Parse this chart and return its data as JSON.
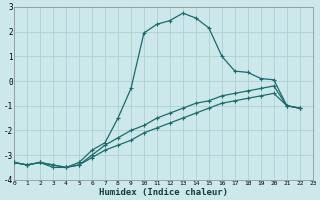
{
  "xlabel": "Humidex (Indice chaleur)",
  "background_color": "#cce8ea",
  "grid_color": "#b0d0d4",
  "line_color": "#1a6b6b",
  "xlim": [
    0,
    23
  ],
  "ylim": [
    -4,
    3
  ],
  "xtick_labels": [
    "0",
    "1",
    "2",
    "3",
    "4",
    "5",
    "6",
    "7",
    "8",
    "9",
    "10",
    "11",
    "12",
    "13",
    "14",
    "15",
    "16",
    "17",
    "18",
    "19",
    "20",
    "21",
    "22",
    "23"
  ],
  "ytick_labels": [
    "-4",
    "-3",
    "-2",
    "-1",
    "0",
    "1",
    "2",
    "3"
  ],
  "ytick_vals": [
    -4,
    -3,
    -2,
    -1,
    0,
    1,
    2,
    3
  ],
  "curve1_x": [
    0,
    1,
    2,
    3,
    4,
    5,
    6,
    7,
    8,
    9,
    10,
    11,
    12,
    13,
    14,
    15,
    16,
    17,
    18,
    19,
    20,
    21,
    22
  ],
  "curve1_y": [
    -3.3,
    -3.4,
    -3.3,
    -3.4,
    -3.5,
    -3.4,
    -3.1,
    -2.8,
    -2.6,
    -2.4,
    -2.1,
    -1.9,
    -1.7,
    -1.5,
    -1.3,
    -1.1,
    -0.9,
    -0.8,
    -0.7,
    -0.6,
    -0.5,
    -1.0,
    -1.1
  ],
  "curve2_x": [
    0,
    1,
    2,
    3,
    4,
    5,
    6,
    7,
    8,
    9,
    10,
    11,
    12,
    13,
    14,
    15,
    16,
    17,
    18,
    19,
    20,
    21,
    22
  ],
  "curve2_y": [
    -3.3,
    -3.4,
    -3.3,
    -3.4,
    -3.5,
    -3.4,
    -3.0,
    -2.6,
    -2.3,
    -2.0,
    -1.8,
    -1.5,
    -1.3,
    -1.1,
    -0.9,
    -0.8,
    -0.6,
    -0.5,
    -0.4,
    -0.3,
    -0.2,
    -1.0,
    -1.1
  ],
  "curve3_x": [
    0,
    1,
    2,
    3,
    4,
    5,
    6,
    7,
    8,
    9,
    10,
    11,
    12,
    13,
    14,
    15,
    16,
    17,
    18,
    19,
    20,
    21,
    22
  ],
  "curve3_y": [
    -3.3,
    -3.4,
    -3.3,
    -3.5,
    -3.5,
    -3.3,
    -2.8,
    -2.5,
    -1.5,
    -0.3,
    1.95,
    2.3,
    2.45,
    2.75,
    2.55,
    2.15,
    1.0,
    0.4,
    0.35,
    0.1,
    0.05,
    -1.0,
    -1.1
  ]
}
